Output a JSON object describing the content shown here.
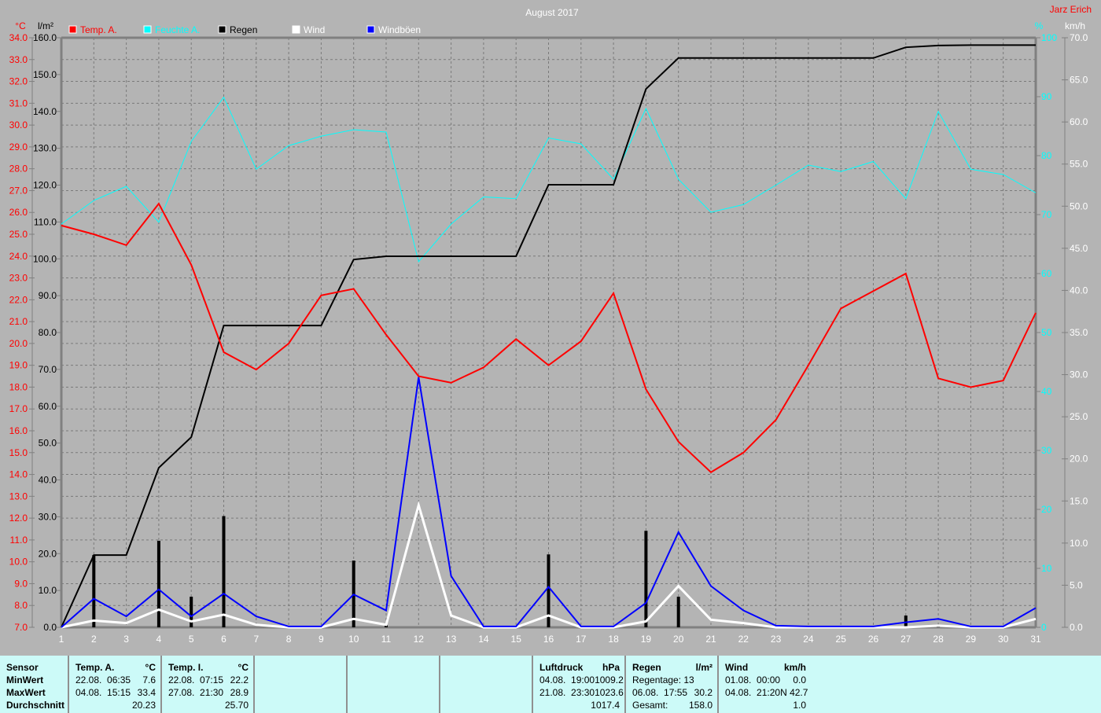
{
  "chart_data": {
    "type": "line",
    "title": "August 2017",
    "author": "Jarz Erich",
    "x": [
      1,
      2,
      3,
      4,
      5,
      6,
      7,
      8,
      9,
      10,
      11,
      12,
      13,
      14,
      15,
      16,
      17,
      18,
      19,
      20,
      21,
      22,
      23,
      24,
      25,
      26,
      27,
      28,
      29,
      30,
      31
    ],
    "axes": {
      "temp": {
        "unit": "°C",
        "range": [
          7,
          34
        ],
        "step": 1,
        "color": "#ff0000"
      },
      "rain": {
        "unit": "l/m²",
        "range": [
          0,
          160
        ],
        "step": 10,
        "color": "#000000"
      },
      "humidity": {
        "unit": "%",
        "range": [
          0,
          100
        ],
        "step": 10,
        "color": "#00ffff"
      },
      "wind": {
        "unit": "km/h",
        "range": [
          0,
          70
        ],
        "step": 5,
        "color": "#ffffff"
      }
    },
    "grid": true,
    "legend_placement": "top",
    "series": [
      {
        "name": "Temp. A.",
        "axis": "temp",
        "color": "#ff0000",
        "values": [
          25.4,
          25.0,
          24.5,
          26.4,
          23.6,
          19.6,
          18.8,
          20.0,
          22.2,
          22.5,
          20.4,
          18.5,
          18.2,
          18.9,
          20.2,
          19.0,
          20.1,
          22.3,
          17.9,
          15.5,
          14.1,
          15.0,
          16.5,
          19.0,
          21.6,
          22.4,
          23.2,
          18.4,
          18.0,
          18.3,
          21.4
        ]
      },
      {
        "name": "Feuchte A.",
        "axis": "humidity",
        "color": "#00ffff",
        "values": [
          68.4,
          72.4,
          74.8,
          68.7,
          82.4,
          89.9,
          77.7,
          81.7,
          83.3,
          84.4,
          84.0,
          62.0,
          68.4,
          73.0,
          72.7,
          83.0,
          82.0,
          76.0,
          88.0,
          76.0,
          70.4,
          71.7,
          75.0,
          78.4,
          77.3,
          79.0,
          72.7,
          87.5,
          77.7,
          76.8,
          73.7
        ]
      },
      {
        "name": "Regen",
        "axis": "rain",
        "color": "#000000",
        "values": [
          0,
          19.6,
          19.6,
          43.3,
          51.6,
          81.9,
          81.9,
          81.9,
          81.9,
          99.8,
          100.7,
          100.7,
          100.7,
          100.7,
          100.7,
          120.1,
          120.1,
          120.1,
          146.1,
          154.5,
          154.5,
          154.5,
          154.5,
          154.5,
          154.5,
          154.5,
          157.4,
          157.9,
          158.0,
          158.0,
          158.0
        ],
        "daily": [
          0,
          19.6,
          0,
          23.5,
          8.3,
          30.2,
          0,
          0,
          0,
          18.1,
          0.6,
          0,
          0,
          0,
          0,
          19.8,
          0,
          0,
          26.2,
          8.3,
          0,
          0,
          0,
          0,
          0,
          0,
          3.2,
          0.5,
          0,
          0,
          0
        ]
      },
      {
        "name": "Wind",
        "axis": "wind",
        "color": "#ffffff",
        "values": [
          0,
          0.8,
          0.5,
          2.1,
          0.7,
          1.5,
          0.3,
          0,
          0,
          1.0,
          0.3,
          14.5,
          1.4,
          0,
          0,
          1.4,
          0,
          0,
          0.7,
          4.9,
          0.9,
          0.5,
          0,
          0,
          0,
          0,
          0,
          0.2,
          0,
          0,
          1.0
        ]
      },
      {
        "name": "Windböen",
        "axis": "wind",
        "color": "#0000ff",
        "values": [
          0,
          3.4,
          1.3,
          4.5,
          1.3,
          4.0,
          1.3,
          0.1,
          0.1,
          3.9,
          2.0,
          29.7,
          6.1,
          0.1,
          0.1,
          4.8,
          0.1,
          0.1,
          2.9,
          11.3,
          4.9,
          2.0,
          0.2,
          0.1,
          0.1,
          0.1,
          0.6,
          1.0,
          0.1,
          0.1,
          2.3
        ]
      }
    ]
  },
  "stats": {
    "sensor": {
      "header": "Sensor",
      "rows": [
        "MinWert",
        "MaxWert",
        "Durchschnitt"
      ]
    },
    "temp_a": {
      "header": "Temp. A.",
      "unit": "°C",
      "min_time": "22.08.  06:35",
      "min": "7.6",
      "max_time": "04.08.  15:15",
      "max": "33.4",
      "avg": "20.23"
    },
    "temp_i": {
      "header": "Temp. I.",
      "unit": "°C",
      "min_time": "22.08.  07:15",
      "min": "22.2",
      "max_time": "27.08.  21:30",
      "max": "28.9",
      "avg": "25.70"
    },
    "pressure": {
      "header": "Luftdruck",
      "unit": "hPa",
      "min_time": "04.08.  19:00",
      "min": "1009.2",
      "max_time": "21.08.  23:30",
      "max": "1023.6",
      "avg": "1017.4"
    },
    "rain": {
      "header": "Regen",
      "unit": "l/m²",
      "days": "Regentage: 13",
      "max_time": "06.08.  17:55",
      "max": "30.2",
      "total_label": "Gesamt:",
      "total": "158.0"
    },
    "wind": {
      "header": "Wind",
      "unit": "km/h",
      "min_time": "01.08.  00:00",
      "min": "0.0",
      "max_time": "04.08.  21:20",
      "max": "N 42.7",
      "avg": "1.0"
    }
  }
}
